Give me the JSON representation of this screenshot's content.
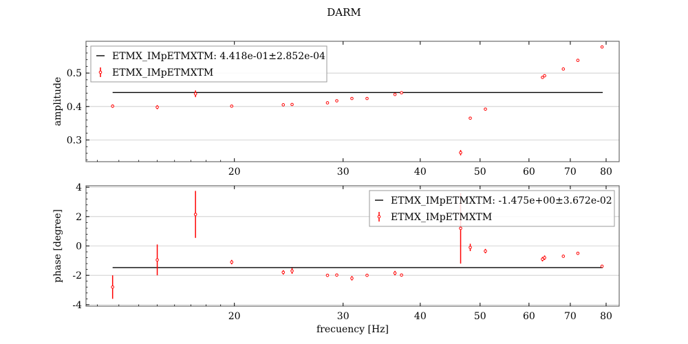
{
  "figure": {
    "title": "DARM"
  },
  "chart_data": [
    {
      "type": "scatter",
      "xscale": "log",
      "xlim": [
        11.5,
        84
      ],
      "ylim": [
        0.235,
        0.595
      ],
      "xlabel": "",
      "ylabel": "amplitude",
      "xticks": [
        20,
        30,
        40,
        50,
        60,
        70,
        80
      ],
      "yticks": [
        0.3,
        0.4,
        0.5
      ],
      "grid": "horizontal",
      "legend_position": "top-left",
      "fit_label": "ETMX_IMpETMXTM: 4.418e-01±2.852e-04",
      "fit_value": 0.4418,
      "fit_x": [
        12.7,
        79
      ],
      "series_label": "ETMX_IMpETMXTM",
      "points": [
        {
          "x": 12.7,
          "y": 0.401,
          "err": 0.005
        },
        {
          "x": 15.0,
          "y": 0.398,
          "err": 0.006
        },
        {
          "x": 17.3,
          "y": 0.438,
          "err": 0.01
        },
        {
          "x": 19.8,
          "y": 0.401,
          "err": 0.002
        },
        {
          "x": 24.0,
          "y": 0.405,
          "err": 0.002
        },
        {
          "x": 24.8,
          "y": 0.406,
          "err": 0.002
        },
        {
          "x": 28.3,
          "y": 0.411,
          "err": 0.002
        },
        {
          "x": 29.3,
          "y": 0.417,
          "err": 0.002
        },
        {
          "x": 31.0,
          "y": 0.424,
          "err": 0.002
        },
        {
          "x": 32.8,
          "y": 0.424,
          "err": 0.002
        },
        {
          "x": 36.4,
          "y": 0.436,
          "err": 0.002
        },
        {
          "x": 37.3,
          "y": 0.441,
          "err": 0.002
        },
        {
          "x": 46.5,
          "y": 0.262,
          "err": 0.008
        },
        {
          "x": 48.2,
          "y": 0.365,
          "err": 0.002
        },
        {
          "x": 51.0,
          "y": 0.392,
          "err": 0.002
        },
        {
          "x": 63.1,
          "y": 0.487,
          "err": 0.003
        },
        {
          "x": 63.6,
          "y": 0.492,
          "err": 0.003
        },
        {
          "x": 68.2,
          "y": 0.512,
          "err": 0.002
        },
        {
          "x": 72.0,
          "y": 0.538,
          "err": 0.002
        },
        {
          "x": 78.8,
          "y": 0.578,
          "err": 0.002
        }
      ]
    },
    {
      "type": "scatter",
      "xscale": "log",
      "xlim": [
        11.5,
        84
      ],
      "ylim": [
        -4.1,
        4.1
      ],
      "xlabel": "frecuency [Hz]",
      "ylabel": "phase [degree]",
      "xticks": [
        20,
        30,
        40,
        50,
        60,
        70,
        80
      ],
      "yticks": [
        -4,
        -2,
        0,
        2,
        4
      ],
      "grid": "horizontal",
      "legend_position": "top-right",
      "fit_label": "ETMX_IMpETMXTM: -1.475e+00±3.672e-02",
      "fit_value": -1.475,
      "fit_x": [
        12.7,
        79
      ],
      "series_label": "ETMX_IMpETMXTM",
      "points": [
        {
          "x": 12.7,
          "y": -2.8,
          "err": 0.8
        },
        {
          "x": 15.0,
          "y": -0.95,
          "err": 1.05
        },
        {
          "x": 17.3,
          "y": 2.15,
          "err": 1.6
        },
        {
          "x": 19.8,
          "y": -1.1,
          "err": 0.15
        },
        {
          "x": 24.0,
          "y": -1.8,
          "err": 0.15
        },
        {
          "x": 24.8,
          "y": -1.7,
          "err": 0.2
        },
        {
          "x": 28.3,
          "y": -2.0,
          "err": 0.1
        },
        {
          "x": 29.3,
          "y": -1.98,
          "err": 0.1
        },
        {
          "x": 31.0,
          "y": -2.2,
          "err": 0.15
        },
        {
          "x": 32.8,
          "y": -2.0,
          "err": 0.05
        },
        {
          "x": 36.4,
          "y": -1.85,
          "err": 0.15
        },
        {
          "x": 37.3,
          "y": -1.98,
          "err": 0.1
        },
        {
          "x": 46.5,
          "y": 1.2,
          "err": 2.4
        },
        {
          "x": 48.2,
          "y": -0.1,
          "err": 0.25
        },
        {
          "x": 51.0,
          "y": -0.35,
          "err": 0.15
        },
        {
          "x": 63.1,
          "y": -0.9,
          "err": 0.15
        },
        {
          "x": 63.6,
          "y": -0.8,
          "err": 0.15
        },
        {
          "x": 68.2,
          "y": -0.7,
          "err": 0.1
        },
        {
          "x": 72.0,
          "y": -0.5,
          "err": 0.1
        },
        {
          "x": 78.8,
          "y": -1.38,
          "err": 0.05
        }
      ]
    }
  ]
}
